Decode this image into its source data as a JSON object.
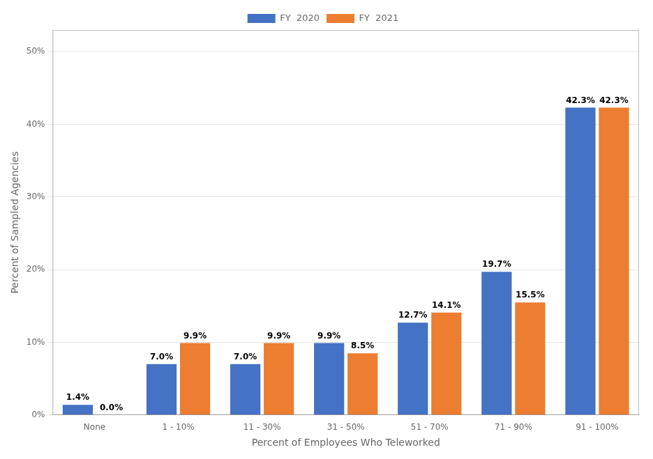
{
  "chart_data": {
    "type": "bar",
    "x_label": "Percent of Employees Who Teleworked",
    "y_label": "Percent of Sampled Agencies",
    "categories": [
      "None",
      "1 - 10%",
      "11 - 30%",
      "31 - 50%",
      "51 - 70%",
      "71 - 90%",
      "91 - 100%"
    ],
    "series": [
      {
        "name": "FY  2020",
        "color": "#4472C4",
        "values": [
          1.4,
          7.0,
          7.0,
          9.9,
          12.7,
          19.7,
          42.3
        ],
        "value_labels": [
          "1.4%",
          "7.0%",
          "7.0%",
          "9.9%",
          "12.7%",
          "19.7%",
          "42.3%"
        ]
      },
      {
        "name": "FY  2021",
        "color": "#ED7D31",
        "values": [
          0.0,
          9.9,
          9.9,
          8.5,
          14.1,
          15.5,
          42.3
        ],
        "value_labels": [
          "0.0%",
          "9.9%",
          "9.9%",
          "8.5%",
          "14.1%",
          "15.5%",
          "42.3%"
        ]
      }
    ],
    "ylim": [
      0,
      53
    ],
    "yticks": [
      {
        "value": 0,
        "label": "0%"
      },
      {
        "value": 10,
        "label": "10%"
      },
      {
        "value": 20,
        "label": "20%"
      },
      {
        "value": 30,
        "label": "30%"
      },
      {
        "value": 40,
        "label": "40%"
      },
      {
        "value": 50,
        "label": "50%"
      }
    ],
    "grid": true,
    "legend": "top",
    "data_labels": true
  }
}
